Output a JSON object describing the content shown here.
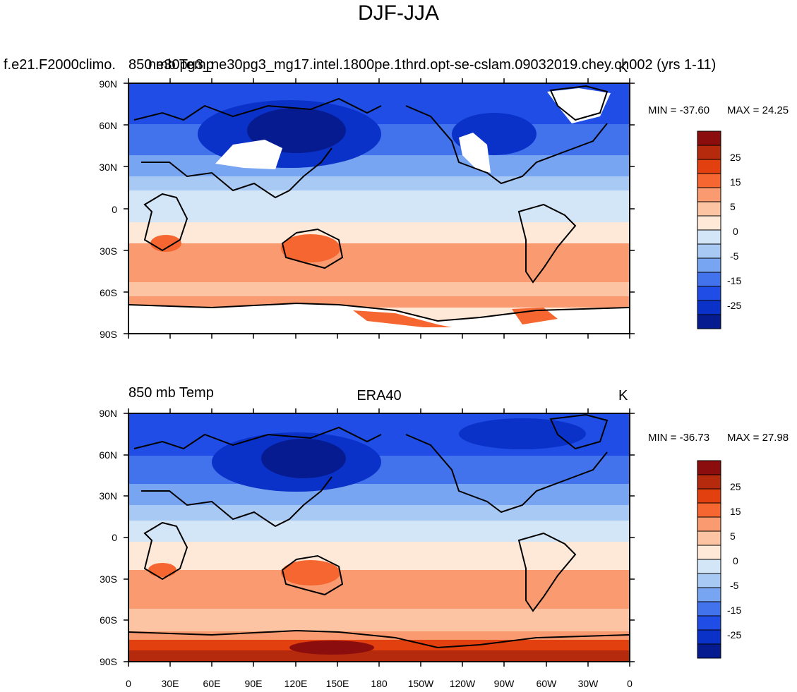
{
  "figure": {
    "title": "DJF-JJA"
  },
  "panels": [
    {
      "left_string": "f.e21.F2000climo.",
      "center_string": "850 mb Temp",
      "overlap_string": "ne30pg3_ne30pg3_mg17.intel.1800pe.1thrd.opt-se-cslam.09032019.chey.ch002 (yrs 1-11)",
      "right_string": "K",
      "min_label": "MIN = -37.60",
      "max_label": "MAX =  24.25"
    },
    {
      "left_string": "850 mb Temp",
      "center_string": "ERA40",
      "right_string": "K",
      "min_label": "MIN = -36.73",
      "max_label": "MAX =  27.98"
    }
  ],
  "map_axes": {
    "lon_ticks": [
      "0",
      "30E",
      "60E",
      "90E",
      "120E",
      "150E",
      "180",
      "150W",
      "120W",
      "90W",
      "60W",
      "30W",
      "0"
    ],
    "lat_ticks": [
      "90N",
      "60N",
      "30N",
      "0",
      "30S",
      "60S",
      "90S"
    ]
  },
  "colorbar": {
    "labels": [
      "25",
      "15",
      "5",
      "0",
      "-5",
      "-15",
      "-25"
    ],
    "colors": [
      "#8b0d0d",
      "#b52a0c",
      "#e3400f",
      "#f56630",
      "#fa9a70",
      "#fcc4a3",
      "#fee9d9",
      "#d3e6f8",
      "#a9c9f5",
      "#78a5f2",
      "#4272ec",
      "#1f4de6",
      "#0a32c8",
      "#071b91"
    ]
  }
}
